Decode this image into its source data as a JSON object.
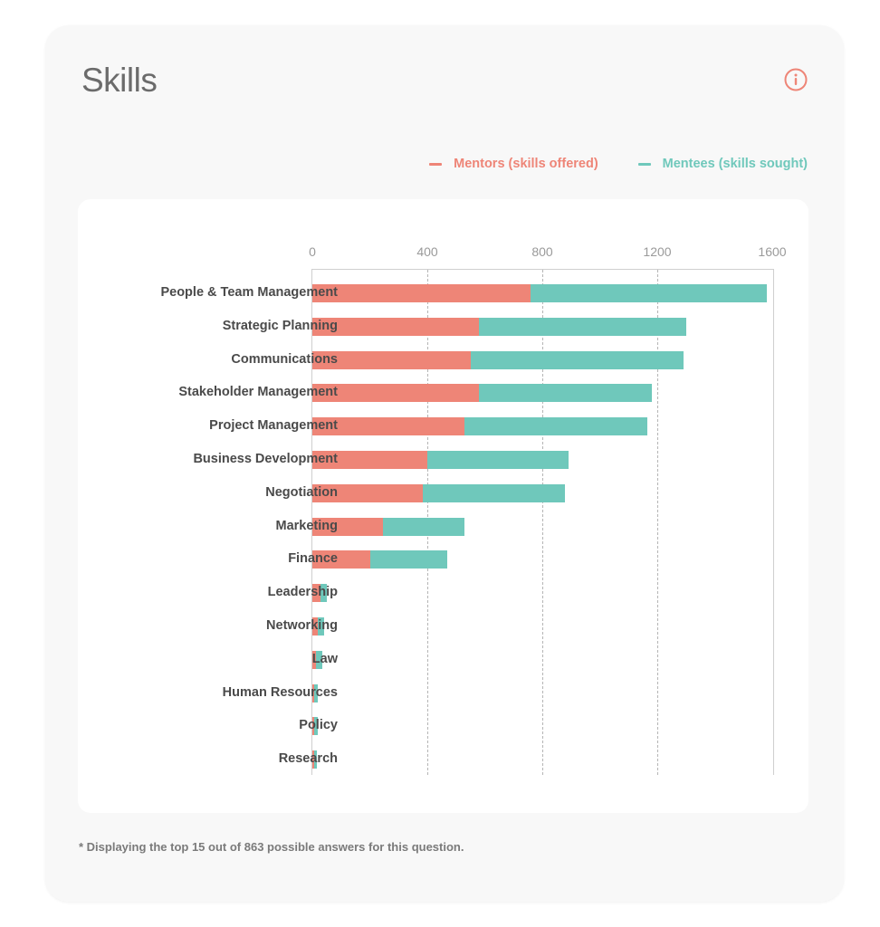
{
  "card": {
    "title": "Skills",
    "info_icon": "info-circle-icon",
    "footnote": "* Displaying the top 15 out of 863 possible answers for this question."
  },
  "colors": {
    "mentors": "#EE8577",
    "mentees": "#6FC8BB",
    "card_bg": "#F8F8F8",
    "panel_bg": "#FFFFFF"
  },
  "legend": [
    {
      "label": "Mentors (skills offered)",
      "color": "#EE8577"
    },
    {
      "label": "Mentees (skills sought)",
      "color": "#6FC8BB"
    }
  ],
  "chart_data": {
    "type": "bar",
    "orientation": "horizontal",
    "stacked": true,
    "title": "Skills",
    "xlabel": "",
    "ylabel": "",
    "xlim": [
      0,
      1600
    ],
    "xticks": [
      0,
      400,
      800,
      1200,
      1600
    ],
    "grid": "vertical dashed",
    "legend_position": "top-right",
    "categories": [
      "People & Team Management",
      "Strategic Planning",
      "Communications",
      "Stakeholder Management",
      "Project Management",
      "Business Development",
      "Negotiation",
      "Marketing",
      "Finance",
      "Leadership",
      "Networking",
      "Law",
      "Human Resources",
      "Policy",
      "Research"
    ],
    "series": [
      {
        "name": "Mentors (skills offered)",
        "color": "#EE8577",
        "values": [
          760,
          580,
          550,
          580,
          530,
          400,
          385,
          245,
          200,
          28,
          18,
          12,
          7,
          6,
          5
        ]
      },
      {
        "name": "Mentees (skills sought)",
        "color": "#6FC8BB",
        "values": [
          820,
          720,
          740,
          600,
          635,
          490,
          495,
          285,
          270,
          22,
          24,
          23,
          11,
          12,
          11
        ]
      }
    ],
    "annotations": [
      "* Displaying the top 15 out of 863 possible answers for this question."
    ]
  }
}
